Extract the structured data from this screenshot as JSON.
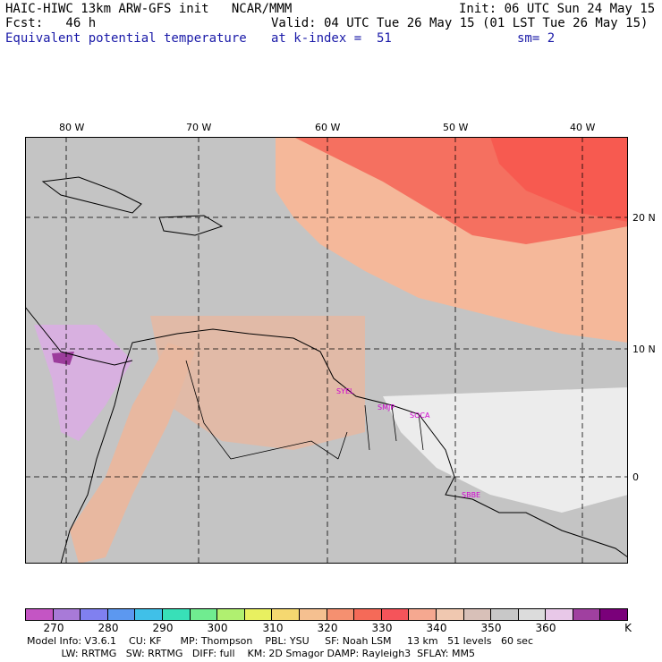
{
  "header": {
    "line1_left": "HAIC-HIWC 13km ARW-GFS init   NCAR/MMM",
    "line1_right": "Init: 06 UTC Sun 24 May 15",
    "line2_left": "Fcst:   46 h",
    "line2_right": "Valid: 04 UTC Tue 26 May 15 (01 LST Tue 26 May 15)",
    "field_name": "Equivalent potential temperature",
    "level_text": "at k-index =  51",
    "smooth_text": "sm= 2"
  },
  "map": {
    "lon_labels": [
      "80 W",
      "70 W",
      "60 W",
      "50 W",
      "40 W"
    ],
    "lat_labels": [
      "20 N",
      "10 N",
      "0"
    ],
    "stations": [
      "SYEL",
      "SMJP",
      "SOCA",
      "SBBE"
    ],
    "colors": {
      "background": "#c4c4c4",
      "ocean_warm": "#f5b89a",
      "ocean_hot": "#f57060",
      "ocean_max": "#f75a50",
      "land_warm": "#e8b8a0",
      "cool_white": "#ececec",
      "cool_violet": "#d8b0e0",
      "violet_dark": "#9c3c9c",
      "station_label": "#d000d0"
    }
  },
  "colorbar": {
    "colors": [
      "#c455c4",
      "#a87ad8",
      "#8080f0",
      "#5c98f0",
      "#40c0e8",
      "#38e0b8",
      "#70ec90",
      "#b0f070",
      "#e8f060",
      "#f5d870",
      "#f5c090",
      "#f59070",
      "#f56a58",
      "#f5545a",
      "#f5a890",
      "#f0c8b0",
      "#d8c0b8",
      "#c8c8c8",
      "#dcdcdc",
      "#e8c8e8",
      "#a040a0",
      "#7a007a"
    ],
    "labels": [
      "270",
      "280",
      "290",
      "300",
      "310",
      "320",
      "330",
      "340",
      "350",
      "360",
      "K"
    ]
  },
  "footer": {
    "line1": "Model Info: V3.6.1    CU: KF      MP: Thompson    PBL: YSU     SF: Noah LSM     13 km   51 levels   60 sec",
    "line2": "           LW: RRTMG   SW: RRTMG   DIFF: full    KM: 2D Smagor DAMP: Rayleigh3  SFLAY: MM5"
  }
}
